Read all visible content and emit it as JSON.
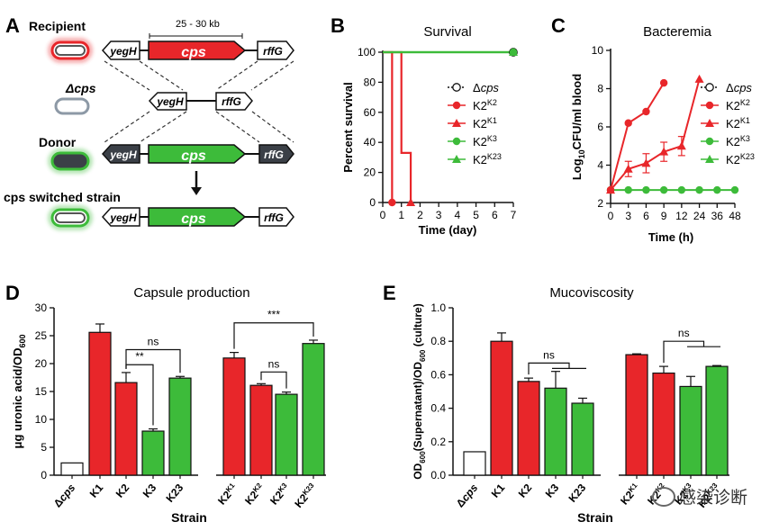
{
  "panelA": {
    "letter": "A",
    "recipient": "Recipient",
    "dcps": "Δcps",
    "donor": "Donor",
    "switched": "cps switched strain",
    "size": "25 - 30 kb",
    "yegH": "yegH",
    "cps": "cps",
    "rffG": "rffG",
    "colors": {
      "red": "#e8262a",
      "green": "#3dbb3a",
      "dark": "#3b4047"
    }
  },
  "chart_data": [
    {
      "panel": "B",
      "type": "line",
      "title": "Survival",
      "xlabel": "Time (day)",
      "ylabel": "Percent survival",
      "xlim": [
        0,
        7
      ],
      "ylim": [
        0,
        100
      ],
      "xticks": [
        0,
        1,
        2,
        3,
        4,
        5,
        6,
        7
      ],
      "yticks": [
        0,
        20,
        40,
        60,
        80,
        100
      ],
      "legend_position": "right",
      "legend": [
        {
          "label": "Δcps",
          "base": "Δ",
          "italic": "cps",
          "marker": "circle-open",
          "color": "#111111"
        },
        {
          "label": "K2K2",
          "base": "K2",
          "sup": "K2",
          "marker": "circle",
          "color": "#e8262a"
        },
        {
          "label": "K2K1",
          "base": "K2",
          "sup": "K1",
          "marker": "triangle",
          "color": "#e8262a"
        },
        {
          "label": "K2K3",
          "base": "K2",
          "sup": "K3",
          "marker": "circle",
          "color": "#3dbb3a"
        },
        {
          "label": "K2K23",
          "base": "K2",
          "sup": "K23",
          "marker": "triangle",
          "color": "#3dbb3a"
        }
      ],
      "series": [
        {
          "name": "Δcps",
          "x": [
            0,
            7
          ],
          "y": [
            100,
            100
          ],
          "step": true,
          "color": "#111111",
          "dotted": true,
          "marker": "circle-open"
        },
        {
          "name": "K2K2",
          "x": [
            0,
            0.5,
            0.5
          ],
          "y": [
            100,
            100,
            0
          ],
          "step": true,
          "color": "#e8262a",
          "marker": "circle"
        },
        {
          "name": "K2K1",
          "x": [
            0,
            1,
            1,
            1.5,
            1.5
          ],
          "y": [
            100,
            100,
            33,
            33,
            0
          ],
          "step": true,
          "color": "#e8262a",
          "marker": "triangle"
        },
        {
          "name": "K2K3",
          "x": [
            0,
            7
          ],
          "y": [
            100,
            100
          ],
          "step": true,
          "color": "#3dbb3a",
          "marker": "circle"
        },
        {
          "name": "K2K23",
          "x": [
            0,
            7
          ],
          "y": [
            100,
            100
          ],
          "step": true,
          "color": "#3dbb3a",
          "marker": "triangle"
        }
      ]
    },
    {
      "panel": "C",
      "type": "line",
      "title": "Bacteremia",
      "xlabel": "Time (h)",
      "ylabel": "Log10CFU/ml blood",
      "xlim": [
        0,
        48
      ],
      "ylim": [
        2,
        10
      ],
      "xticks": [
        0,
        3,
        6,
        9,
        12,
        24,
        36,
        48
      ],
      "yticks": [
        2,
        4,
        6,
        8,
        10
      ],
      "legend_position": "right",
      "legend": [
        {
          "label": "Δcps",
          "base": "Δ",
          "italic": "cps",
          "marker": "circle-open",
          "color": "#111111"
        },
        {
          "label": "K2K2",
          "base": "K2",
          "sup": "K2",
          "marker": "circle",
          "color": "#e8262a"
        },
        {
          "label": "K2K1",
          "base": "K2",
          "sup": "K1",
          "marker": "triangle",
          "color": "#e8262a"
        },
        {
          "label": "K2K3",
          "base": "K2",
          "sup": "K3",
          "marker": "circle",
          "color": "#3dbb3a"
        },
        {
          "label": "K2K23",
          "base": "K2",
          "sup": "K23",
          "marker": "triangle",
          "color": "#3dbb3a"
        }
      ],
      "series": [
        {
          "name": "K2K2",
          "x": [
            0,
            3,
            6,
            9
          ],
          "y": [
            2.7,
            6.2,
            6.8,
            8.3
          ],
          "err": [
            0,
            0,
            0,
            0
          ],
          "color": "#e8262a",
          "marker": "circle"
        },
        {
          "name": "K2K1",
          "x": [
            0,
            3,
            6,
            9,
            12,
            24
          ],
          "y": [
            2.7,
            3.8,
            4.1,
            4.7,
            5.0,
            8.5
          ],
          "err": [
            0,
            0.4,
            0.5,
            0.5,
            0.5,
            0
          ],
          "color": "#e8262a",
          "marker": "triangle"
        },
        {
          "name": "K2K3",
          "x": [
            0,
            3,
            6,
            9,
            12,
            24,
            36,
            48
          ],
          "y": [
            2.7,
            2.7,
            2.7,
            2.7,
            2.7,
            2.7,
            2.7,
            2.7
          ],
          "err": [
            0,
            0,
            0,
            0,
            0,
            0,
            0,
            0
          ],
          "color": "#3dbb3a",
          "marker": "circle"
        }
      ]
    },
    {
      "panel": "D",
      "type": "bar",
      "title": "Capsule production",
      "xlabel": "Strain",
      "ylabel": "μg uronic acid/OD600",
      "ylim": [
        0,
        30
      ],
      "yticks": [
        0,
        5,
        10,
        15,
        20,
        25,
        30
      ],
      "categories": [
        {
          "base": "Δ",
          "italic": "cps"
        },
        {
          "base": "K1"
        },
        {
          "base": "K2"
        },
        {
          "base": "K3"
        },
        {
          "base": "K23"
        },
        {
          "base": "K2",
          "sup": "K1"
        },
        {
          "base": "K2",
          "sup": "K2"
        },
        {
          "base": "K2",
          "sup": "K3"
        },
        {
          "base": "K2",
          "sup": "K23"
        }
      ],
      "values": [
        2.2,
        25.6,
        16.6,
        7.9,
        17.4,
        21.0,
        16.1,
        14.5,
        23.6
      ],
      "errors": [
        0,
        1.5,
        1.8,
        0.4,
        0.3,
        1.0,
        0.3,
        0.4,
        0.6
      ],
      "colors": [
        "#ffffff",
        "#e8262a",
        "#e8262a",
        "#3dbb3a",
        "#3dbb3a",
        "#e8262a",
        "#e8262a",
        "#3dbb3a",
        "#3dbb3a"
      ],
      "significance": [
        {
          "label": "ns",
          "from": 2,
          "to": 4,
          "y": 22.5
        },
        {
          "label": "**",
          "from": 2,
          "to": 3,
          "y": 19.8
        },
        {
          "label": "ns",
          "from": 6,
          "to": 7,
          "y": 18.5
        },
        {
          "label": "***",
          "from": 5,
          "to": 8,
          "y": 27.3
        }
      ]
    },
    {
      "panel": "E",
      "type": "bar",
      "title": "Mucoviscosity",
      "xlabel": "Strain",
      "ylabel": "OD600(Supernatant)/OD600 (culture)",
      "ylim": [
        0,
        1.0
      ],
      "yticks": [
        0.0,
        0.2,
        0.4,
        0.6,
        0.8,
        1.0
      ],
      "categories": [
        {
          "base": "Δ",
          "italic": "cps"
        },
        {
          "base": "K1"
        },
        {
          "base": "K2"
        },
        {
          "base": "K3"
        },
        {
          "base": "K23"
        },
        {
          "base": "K2",
          "sup": "K1"
        },
        {
          "base": "K2",
          "sup": "K2"
        },
        {
          "base": "K2",
          "sup": "K3"
        },
        {
          "base": "K2",
          "sup": "K23"
        }
      ],
      "values": [
        0.14,
        0.8,
        0.56,
        0.52,
        0.43,
        0.72,
        0.61,
        0.53,
        0.65
      ],
      "errors": [
        0,
        0.05,
        0.02,
        0.1,
        0.03,
        0.005,
        0.04,
        0.06,
        0.005
      ],
      "colors": [
        "#ffffff",
        "#e8262a",
        "#e8262a",
        "#3dbb3a",
        "#3dbb3a",
        "#e8262a",
        "#e8262a",
        "#3dbb3a",
        "#3dbb3a"
      ],
      "significance": [
        {
          "label": "ns",
          "from": 2,
          "bracketTo": 3,
          "spanTo": 4,
          "y": 0.67
        },
        {
          "label": "ns",
          "from": 6,
          "bracketTo": 7,
          "spanTo": 8,
          "y": 0.8
        }
      ]
    }
  ],
  "panel_letters": [
    "B",
    "C",
    "D",
    "E"
  ],
  "watermark": "感染诊断"
}
